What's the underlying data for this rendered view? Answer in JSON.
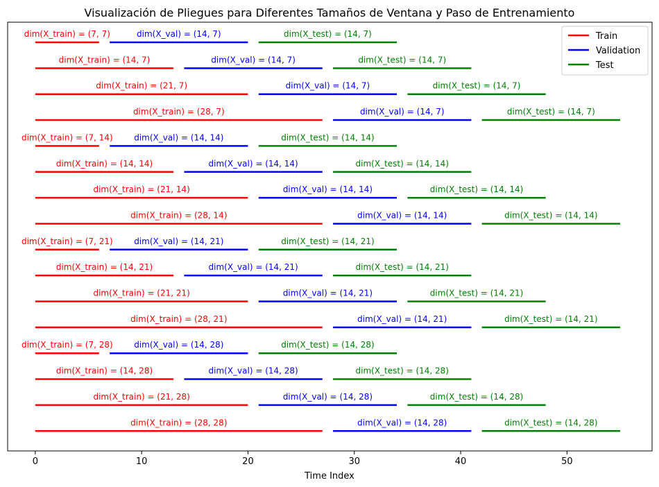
{
  "chart_data": {
    "type": "line",
    "title": "Visualización de Pliegues para Diferentes Tamaños de Ventana y Paso de Entrenamiento",
    "xlabel": "Time Index",
    "ylabel": "",
    "xlim": [
      -2.6,
      58
    ],
    "x_ticks": [
      0,
      10,
      20,
      30,
      40,
      50
    ],
    "legend": {
      "position": "top-right",
      "entries": [
        {
          "name": "Train",
          "color": "#ff0000"
        },
        {
          "name": "Validation",
          "color": "#0000ff"
        },
        {
          "name": "Test",
          "color": "#008000"
        }
      ]
    },
    "folds": [
      {
        "segments": [
          {
            "set": "train",
            "start": 0,
            "end": 6,
            "label": "dim(X_train) = (7, 7)"
          },
          {
            "set": "val",
            "start": 7,
            "end": 20,
            "label": "dim(X_val) = (14, 7)"
          },
          {
            "set": "test",
            "start": 21,
            "end": 34,
            "label": "dim(X_test) = (14, 7)"
          }
        ]
      },
      {
        "segments": [
          {
            "set": "train",
            "start": 0,
            "end": 13,
            "label": "dim(X_train) = (14, 7)"
          },
          {
            "set": "val",
            "start": 14,
            "end": 27,
            "label": "dim(X_val) = (14, 7)"
          },
          {
            "set": "test",
            "start": 28,
            "end": 41,
            "label": "dim(X_test) = (14, 7)"
          }
        ]
      },
      {
        "segments": [
          {
            "set": "train",
            "start": 0,
            "end": 20,
            "label": "dim(X_train) = (21, 7)"
          },
          {
            "set": "val",
            "start": 21,
            "end": 34,
            "label": "dim(X_val) = (14, 7)"
          },
          {
            "set": "test",
            "start": 35,
            "end": 48,
            "label": "dim(X_test) = (14, 7)"
          }
        ]
      },
      {
        "segments": [
          {
            "set": "train",
            "start": 0,
            "end": 27,
            "label": "dim(X_train) = (28, 7)"
          },
          {
            "set": "val",
            "start": 28,
            "end": 41,
            "label": "dim(X_val) = (14, 7)"
          },
          {
            "set": "test",
            "start": 42,
            "end": 55,
            "label": "dim(X_test) = (14, 7)"
          }
        ]
      },
      {
        "segments": [
          {
            "set": "train",
            "start": 0,
            "end": 6,
            "label": "dim(X_train) = (7, 14)"
          },
          {
            "set": "val",
            "start": 7,
            "end": 20,
            "label": "dim(X_val) = (14, 14)"
          },
          {
            "set": "test",
            "start": 21,
            "end": 34,
            "label": "dim(X_test) = (14, 14)"
          }
        ]
      },
      {
        "segments": [
          {
            "set": "train",
            "start": 0,
            "end": 13,
            "label": "dim(X_train) = (14, 14)"
          },
          {
            "set": "val",
            "start": 14,
            "end": 27,
            "label": "dim(X_val) = (14, 14)"
          },
          {
            "set": "test",
            "start": 28,
            "end": 41,
            "label": "dim(X_test) = (14, 14)"
          }
        ]
      },
      {
        "segments": [
          {
            "set": "train",
            "start": 0,
            "end": 20,
            "label": "dim(X_train) = (21, 14)"
          },
          {
            "set": "val",
            "start": 21,
            "end": 34,
            "label": "dim(X_val) = (14, 14)"
          },
          {
            "set": "test",
            "start": 35,
            "end": 48,
            "label": "dim(X_test) = (14, 14)"
          }
        ]
      },
      {
        "segments": [
          {
            "set": "train",
            "start": 0,
            "end": 27,
            "label": "dim(X_train) = (28, 14)"
          },
          {
            "set": "val",
            "start": 28,
            "end": 41,
            "label": "dim(X_val) = (14, 14)"
          },
          {
            "set": "test",
            "start": 42,
            "end": 55,
            "label": "dim(X_test) = (14, 14)"
          }
        ]
      },
      {
        "segments": [
          {
            "set": "train",
            "start": 0,
            "end": 6,
            "label": "dim(X_train) = (7, 21)"
          },
          {
            "set": "val",
            "start": 7,
            "end": 20,
            "label": "dim(X_val) = (14, 21)"
          },
          {
            "set": "test",
            "start": 21,
            "end": 34,
            "label": "dim(X_test) = (14, 21)"
          }
        ]
      },
      {
        "segments": [
          {
            "set": "train",
            "start": 0,
            "end": 13,
            "label": "dim(X_train) = (14, 21)"
          },
          {
            "set": "val",
            "start": 14,
            "end": 27,
            "label": "dim(X_val) = (14, 21)"
          },
          {
            "set": "test",
            "start": 28,
            "end": 41,
            "label": "dim(X_test) = (14, 21)"
          }
        ]
      },
      {
        "segments": [
          {
            "set": "train",
            "start": 0,
            "end": 20,
            "label": "dim(X_train) = (21, 21)"
          },
          {
            "set": "val",
            "start": 21,
            "end": 34,
            "label": "dim(X_val) = (14, 21)"
          },
          {
            "set": "test",
            "start": 35,
            "end": 48,
            "label": "dim(X_test) = (14, 21)"
          }
        ]
      },
      {
        "segments": [
          {
            "set": "train",
            "start": 0,
            "end": 27,
            "label": "dim(X_train) = (28, 21)"
          },
          {
            "set": "val",
            "start": 28,
            "end": 41,
            "label": "dim(X_val) = (14, 21)"
          },
          {
            "set": "test",
            "start": 42,
            "end": 55,
            "label": "dim(X_test) = (14, 21)"
          }
        ]
      },
      {
        "segments": [
          {
            "set": "train",
            "start": 0,
            "end": 6,
            "label": "dim(X_train) = (7, 28)"
          },
          {
            "set": "val",
            "start": 7,
            "end": 20,
            "label": "dim(X_val) = (14, 28)"
          },
          {
            "set": "test",
            "start": 21,
            "end": 34,
            "label": "dim(X_test) = (14, 28)"
          }
        ]
      },
      {
        "segments": [
          {
            "set": "train",
            "start": 0,
            "end": 13,
            "label": "dim(X_train) = (14, 28)"
          },
          {
            "set": "val",
            "start": 14,
            "end": 27,
            "label": "dim(X_val) = (14, 28)"
          },
          {
            "set": "test",
            "start": 28,
            "end": 41,
            "label": "dim(X_test) = (14, 28)"
          }
        ]
      },
      {
        "segments": [
          {
            "set": "train",
            "start": 0,
            "end": 20,
            "label": "dim(X_train) = (21, 28)"
          },
          {
            "set": "val",
            "start": 21,
            "end": 34,
            "label": "dim(X_val) = (14, 28)"
          },
          {
            "set": "test",
            "start": 35,
            "end": 48,
            "label": "dim(X_test) = (14, 28)"
          }
        ]
      },
      {
        "segments": [
          {
            "set": "train",
            "start": 0,
            "end": 27,
            "label": "dim(X_train) = (28, 28)"
          },
          {
            "set": "val",
            "start": 28,
            "end": 41,
            "label": "dim(X_val) = (14, 28)"
          },
          {
            "set": "test",
            "start": 42,
            "end": 55,
            "label": "dim(X_test) = (14, 28)"
          }
        ]
      }
    ],
    "set_colors": {
      "train": "#ff0000",
      "val": "#0000ff",
      "test": "#008000"
    }
  }
}
